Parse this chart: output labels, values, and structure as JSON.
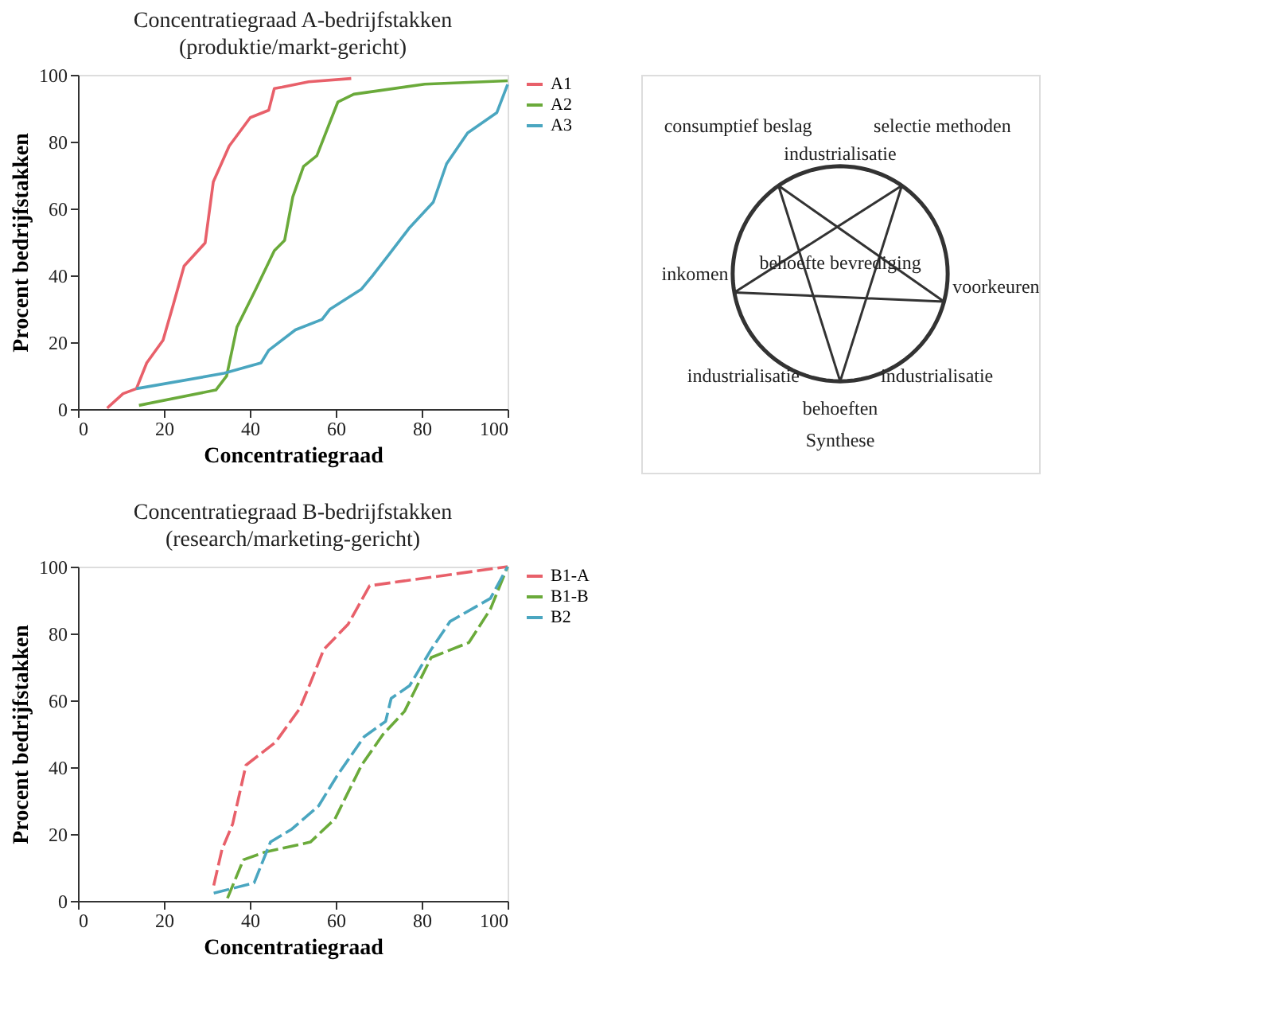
{
  "chart_data": [
    {
      "type": "line",
      "title": "Concentratiegraad A-bedrijfstakken",
      "subtitle": "(produktie/markt-gericht)",
      "xlabel": "Concentratiegraad",
      "ylabel": "Procent bedrijfstakken",
      "xlim": [
        0,
        100
      ],
      "ylim": [
        0,
        100
      ],
      "xticks": [
        0,
        20,
        40,
        60,
        80,
        100
      ],
      "yticks": [
        0,
        20,
        40,
        60,
        80,
        100
      ],
      "grid": false,
      "legend": "right",
      "marker": "none",
      "line_style": "solid",
      "series": [
        {
          "name": "A1",
          "color": "#e8606a",
          "x": [
            6.8,
            10.5,
            13.6,
            16,
            19.8,
            22.2,
            24.7,
            29.6,
            31.5,
            35.2,
            40.1,
            44.4,
            45.7,
            47.5,
            53.7,
            63.6
          ],
          "values": [
            0.3,
            4.6,
            6.1,
            13.8,
            20.6,
            31.3,
            42.8,
            49.7,
            68,
            78.7,
            87.2,
            89.4,
            95.9,
            96.3,
            97.9,
            98.9
          ]
        },
        {
          "name": "A2",
          "color": "#6aaa3a",
          "x": [
            14.2,
            32.1,
            34.6,
            37,
            41.4,
            45.7,
            48.1,
            50,
            52.5,
            55.6,
            60.5,
            64.2,
            80.7,
            100
          ],
          "values": [
            1.1,
            5.7,
            9.9,
            24.5,
            35.9,
            47.4,
            50.5,
            63.5,
            72.6,
            75.8,
            91.9,
            94.2,
            97.2,
            98.2
          ]
        },
        {
          "name": "A3",
          "color": "#4aa6c0",
          "x": [
            13.6,
            34,
            42.6,
            44.4,
            50.6,
            56.8,
            58.6,
            66,
            68.5,
            72.2,
            77.2,
            82.7,
            85.8,
            90.7,
            97.5,
            100
          ],
          "values": [
            6.1,
            10.7,
            13.8,
            17.6,
            23.7,
            26.8,
            29.8,
            35.9,
            39.8,
            45.9,
            54.3,
            61.9,
            73.4,
            82.6,
            88.7,
            97.1
          ]
        }
      ]
    },
    {
      "type": "line",
      "title": "Concentratiegraad B-bedrijfstakken",
      "subtitle": "(research/marketing-gericht)",
      "xlabel": "Concentratiegraad",
      "ylabel": "Procent bedrijfstakken",
      "xlim": [
        0,
        100
      ],
      "ylim": [
        0,
        100
      ],
      "xticks": [
        0,
        20,
        40,
        60,
        80,
        100
      ],
      "yticks": [
        0,
        20,
        40,
        60,
        80,
        100
      ],
      "grid": false,
      "legend": "right",
      "marker": "none",
      "line_style": "dashed",
      "series": [
        {
          "name": "B1-A",
          "color": "#e8606a",
          "x": [
            31.6,
            33.5,
            36,
            39.1,
            46,
            51.6,
            54.1,
            57.2,
            62.9,
            67.9,
            100
          ],
          "values": [
            4.6,
            15.3,
            23,
            40.6,
            47.5,
            57.5,
            65.2,
            75.2,
            82.8,
            94.3,
            100
          ]
        },
        {
          "name": "B1-B",
          "color": "#6aaa3a",
          "x": [
            34.8,
            38.5,
            43.5,
            54.1,
            59.8,
            66,
            71,
            76,
            82.2,
            91,
            96,
            100
          ],
          "values": [
            0.8,
            12.3,
            14.6,
            17.6,
            24.5,
            40.6,
            49.8,
            56.7,
            72.8,
            77.3,
            87.3,
            100
          ]
        },
        {
          "name": "B2",
          "color": "#4aa6c0",
          "x": [
            31.6,
            41,
            44.8,
            49.8,
            56,
            60.4,
            66.6,
            71.6,
            72.9,
            77.2,
            82.2,
            86.6,
            96,
            100
          ],
          "values": [
            2.3,
            5.4,
            17.6,
            21.5,
            28.4,
            37.6,
            49.1,
            53.7,
            60.6,
            64.4,
            75.2,
            83.6,
            90.5,
            100
          ]
        }
      ]
    },
    {
      "type": "other",
      "annotations": [
        "industrialisatie",
        "consumptief beslag",
        "selectie methoden",
        "inkomen",
        "voorkeuren",
        "industrialisatie",
        "industrialisatie",
        "behoeften",
        "behoefte bevrediging",
        "Synthese"
      ]
    }
  ]
}
